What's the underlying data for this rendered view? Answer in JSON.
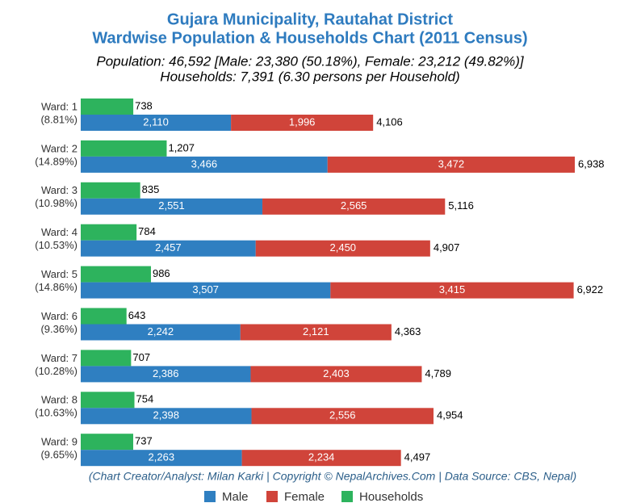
{
  "chart_data": {
    "type": "bar",
    "title": [
      "Gujara Municipality, Rautahat District",
      "Wardwise Population & Households Chart (2011 Census)"
    ],
    "subtitle": [
      "Population: 46,592 [Male: 23,380 (50.18%), Female: 23,212 (49.82%)]",
      "Households: 7,391 (6.30 persons per Household)"
    ],
    "footer": "(Chart Creator/Analyst: Milan Karki | Copyright © NepalArchives.Com | Data Source: CBS, Nepal)",
    "categories": [
      "Ward: 1",
      "Ward: 2",
      "Ward: 3",
      "Ward: 4",
      "Ward: 5",
      "Ward: 6",
      "Ward: 7",
      "Ward: 8",
      "Ward: 9"
    ],
    "category_notes": [
      "(8.81%)",
      "(14.89%)",
      "(10.98%)",
      "(10.53%)",
      "(14.86%)",
      "(9.36%)",
      "(10.28%)",
      "(10.63%)",
      "(9.65%)"
    ],
    "series": [
      {
        "name": "Male",
        "color": "#2f7fc1",
        "values": [
          2110,
          3466,
          2551,
          2457,
          3507,
          2242,
          2386,
          2398,
          2263
        ],
        "value_labels": [
          "2,110",
          "3,466",
          "2,551",
          "2,457",
          "3,507",
          "2,242",
          "2,386",
          "2,398",
          "2,263"
        ]
      },
      {
        "name": "Female",
        "color": "#d0443a",
        "values": [
          1996,
          3472,
          2565,
          2450,
          3415,
          2121,
          2403,
          2556,
          2234
        ],
        "value_labels": [
          "1,996",
          "3,472",
          "2,565",
          "2,450",
          "3,415",
          "2,121",
          "2,403",
          "2,556",
          "2,234"
        ]
      },
      {
        "name": "Households",
        "color": "#2db35d",
        "values": [
          738,
          1207,
          835,
          784,
          986,
          643,
          707,
          754,
          737
        ],
        "value_labels": [
          "738",
          "1,207",
          "835",
          "784",
          "986",
          "643",
          "707",
          "754",
          "737"
        ]
      }
    ],
    "totals": {
      "values": [
        4106,
        6938,
        5116,
        4907,
        6922,
        4363,
        4789,
        4954,
        4497
      ],
      "value_labels": [
        "4,106",
        "6,938",
        "5,116",
        "4,907",
        "6,922",
        "4,363",
        "4,789",
        "4,954",
        "4,497"
      ]
    }
  }
}
